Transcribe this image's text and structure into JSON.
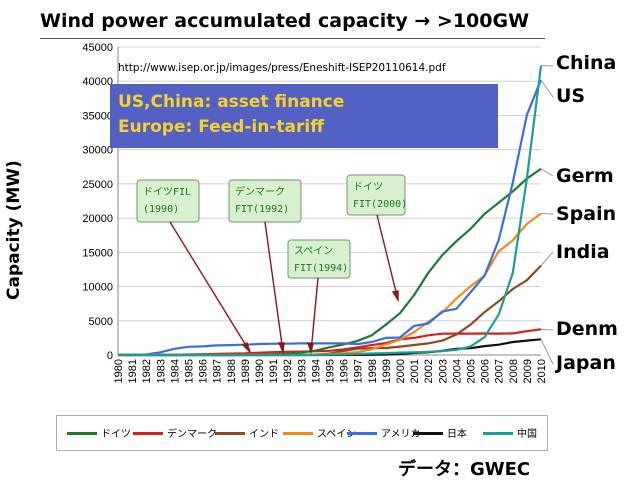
{
  "title": "Wind power accumulated capacity → >100GW",
  "url_text": "http://www.isep.or.jp/images/press/Eneshift-ISEP20110614.pdf",
  "finance_box": {
    "line1": "US,China: asset finance",
    "line2": "Europe: Feed-in-tariff"
  },
  "country_labels": [
    "China",
    "US",
    "Germ",
    "Spain",
    "India",
    "Denm",
    "Japan"
  ],
  "annotations": [
    {
      "line1": "ドイツFIL",
      "line2": "(1990)"
    },
    {
      "line1": "デンマーク",
      "line2": "FIT(1992)"
    },
    {
      "line1": "ドイツ",
      "line2": "FIT(2000)"
    },
    {
      "line1": "スペイン",
      "line2": "FIT(1994)"
    }
  ],
  "source": "データ：GWEC",
  "colors": {
    "germany": "#1e7a32",
    "denmark": "#d61f1f",
    "india": "#8b4a1f",
    "spain": "#f28b1c",
    "usa": "#3b6fe0",
    "japan": "#111111",
    "china": "#1a9e96",
    "box_fill": "#d9f0d0",
    "box_stroke": "#6a9a6a"
  },
  "chart_data": {
    "type": "line",
    "ylabel": "Capacity (MW)",
    "xlabel": "",
    "ylim": [
      0,
      45000
    ],
    "yticks": [
      0,
      5000,
      10000,
      15000,
      20000,
      25000,
      30000,
      35000,
      40000,
      45000
    ],
    "grid": "horizontal",
    "legend_position": "bottom",
    "x": [
      "1980",
      "1981",
      "1982",
      "1983",
      "1984",
      "1985",
      "1986",
      "1987",
      "1988",
      "1989",
      "1990",
      "1991",
      "1992",
      "1993",
      "1994",
      "1995",
      "1996",
      "1997",
      "1998",
      "1999",
      "2000",
      "2001",
      "2002",
      "2003",
      "2004",
      "2005",
      "2006",
      "2007",
      "2008",
      "2009",
      "2010"
    ],
    "series": [
      {
        "name": "ドイツ",
        "color_key": "germany",
        "values": [
          0,
          0,
          0,
          0,
          0,
          0,
          0,
          0,
          0,
          20,
          60,
          110,
          180,
          330,
          640,
          1130,
          1550,
          2080,
          2880,
          4440,
          6100,
          8750,
          12000,
          14600,
          16630,
          18430,
          20620,
          22250,
          23900,
          25780,
          27210
        ]
      },
      {
        "name": "デンマーク",
        "color_key": "denmark",
        "values": [
          0,
          10,
          20,
          30,
          50,
          80,
          120,
          180,
          200,
          240,
          340,
          410,
          460,
          490,
          540,
          610,
          830,
          1130,
          1440,
          1740,
          2300,
          2500,
          2880,
          3110,
          3120,
          3130,
          3140,
          3130,
          3160,
          3480,
          3750
        ]
      },
      {
        "name": "インド",
        "color_key": "india",
        "values": [
          0,
          0,
          0,
          0,
          0,
          0,
          0,
          0,
          0,
          0,
          0,
          0,
          0,
          0,
          60,
          200,
          580,
          940,
          990,
          1030,
          1220,
          1460,
          1700,
          2110,
          3000,
          4430,
          6270,
          7850,
          9650,
          10930,
          13060
        ]
      },
      {
        "name": "スペイン",
        "color_key": "spain",
        "values": [
          0,
          0,
          0,
          0,
          0,
          0,
          0,
          0,
          0,
          0,
          0,
          0,
          0,
          0,
          70,
          120,
          230,
          430,
          830,
          1530,
          2240,
          3340,
          4830,
          6200,
          8260,
          10030,
          11620,
          15150,
          16740,
          19150,
          20680
        ]
      },
      {
        "name": "アメリカ",
        "color_key": "usa",
        "values": [
          10,
          20,
          80,
          400,
          900,
          1200,
          1250,
          1400,
          1450,
          1500,
          1600,
          1650,
          1650,
          1700,
          1700,
          1700,
          1700,
          1600,
          1900,
          2500,
          2550,
          4250,
          4600,
          6350,
          6750,
          9150,
          11600,
          16800,
          25200,
          35100,
          40200
        ]
      },
      {
        "name": "日本",
        "color_key": "japan",
        "values": [
          0,
          0,
          0,
          0,
          0,
          0,
          0,
          0,
          0,
          0,
          0,
          0,
          0,
          0,
          0,
          0,
          10,
          20,
          30,
          70,
          140,
          300,
          400,
          600,
          900,
          1000,
          1300,
          1500,
          1900,
          2100,
          2300
        ]
      },
      {
        "name": "中国",
        "color_key": "china",
        "values": [
          0,
          0,
          0,
          0,
          0,
          0,
          0,
          0,
          0,
          0,
          0,
          0,
          0,
          0,
          0,
          40,
          80,
          150,
          220,
          270,
          350,
          400,
          470,
          570,
          760,
          1260,
          2600,
          5900,
          12000,
          25800,
          42300
        ]
      }
    ]
  }
}
